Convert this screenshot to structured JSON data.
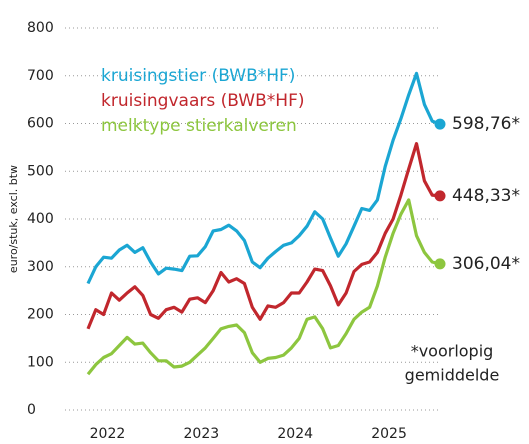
{
  "chart_data": {
    "type": "line",
    "y_axis_label": "euro/stuk, excl. btw",
    "annotation": [
      "*voorlopig",
      "gemiddelde"
    ],
    "categories": [
      null,
      null,
      null,
      "2022",
      null,
      null,
      null,
      null,
      null,
      null,
      null,
      null,
      null,
      null,
      null,
      "2023",
      null,
      null,
      null,
      null,
      null,
      null,
      null,
      null,
      null,
      null,
      null,
      "2024",
      null,
      null,
      null,
      null,
      null,
      null,
      null,
      null,
      null,
      null,
      null,
      "2025",
      null,
      null,
      null,
      null,
      null,
      null
    ],
    "series": [
      {
        "name": "kruisingstier (BWB*HF)",
        "color": "#1ba6d3",
        "values": [
          265,
          300,
          320,
          318,
          335,
          345,
          330,
          340,
          310,
          285,
          297,
          295,
          292,
          322,
          323,
          342,
          375,
          378,
          387,
          375,
          355,
          310,
          298,
          318,
          332,
          345,
          350,
          365,
          385,
          415,
          400,
          360,
          322,
          348,
          385,
          422,
          418,
          440,
          510,
          565,
          610,
          660,
          705,
          640,
          605,
          598.76
        ],
        "value_labels": [
          null,
          null,
          null,
          null,
          null,
          null,
          null,
          null,
          null,
          null,
          null,
          null,
          null,
          null,
          null,
          null,
          null,
          null,
          null,
          null,
          null,
          null,
          null,
          null,
          null,
          null,
          null,
          null,
          null,
          null,
          null,
          null,
          null,
          null,
          null,
          null,
          null,
          null,
          null,
          null,
          null,
          null,
          null,
          null,
          null,
          "598,76*"
        ]
      },
      {
        "name": "kruisingvaars (BWB*HF)",
        "color": "#c1272d",
        "values": [
          170,
          210,
          200,
          245,
          230,
          245,
          258,
          240,
          200,
          192,
          210,
          215,
          205,
          232,
          235,
          225,
          250,
          288,
          268,
          275,
          265,
          215,
          190,
          218,
          215,
          225,
          245,
          245,
          268,
          295,
          292,
          260,
          220,
          245,
          290,
          305,
          310,
          330,
          370,
          400,
          450,
          505,
          558,
          480,
          450,
          448.33
        ],
        "value_labels": [
          null,
          null,
          null,
          null,
          null,
          null,
          null,
          null,
          null,
          null,
          null,
          null,
          null,
          null,
          null,
          null,
          null,
          null,
          null,
          null,
          null,
          null,
          null,
          null,
          null,
          null,
          null,
          null,
          null,
          null,
          null,
          null,
          null,
          null,
          null,
          null,
          null,
          null,
          null,
          null,
          null,
          null,
          null,
          null,
          null,
          "448,33*"
        ]
      },
      {
        "name": "melktype stierkalveren",
        "color": "#8dc63f",
        "values": [
          75,
          95,
          110,
          118,
          135,
          152,
          138,
          140,
          120,
          103,
          103,
          90,
          92,
          100,
          115,
          130,
          150,
          170,
          175,
          178,
          162,
          120,
          100,
          108,
          110,
          115,
          130,
          150,
          190,
          195,
          170,
          130,
          135,
          160,
          190,
          205,
          215,
          260,
          320,
          370,
          410,
          440,
          365,
          330,
          310,
          306.04
        ],
        "value_labels": [
          null,
          null,
          null,
          null,
          null,
          null,
          null,
          null,
          null,
          null,
          null,
          null,
          null,
          null,
          null,
          null,
          null,
          null,
          null,
          null,
          null,
          null,
          null,
          null,
          null,
          null,
          null,
          null,
          null,
          null,
          null,
          null,
          null,
          null,
          null,
          null,
          null,
          null,
          null,
          null,
          null,
          null,
          null,
          null,
          null,
          "306,04*"
        ]
      }
    ],
    "ylim": [
      0,
      800
    ],
    "yticks": [
      0,
      100,
      200,
      300,
      400,
      500,
      600,
      700,
      800
    ],
    "grid": true
  }
}
